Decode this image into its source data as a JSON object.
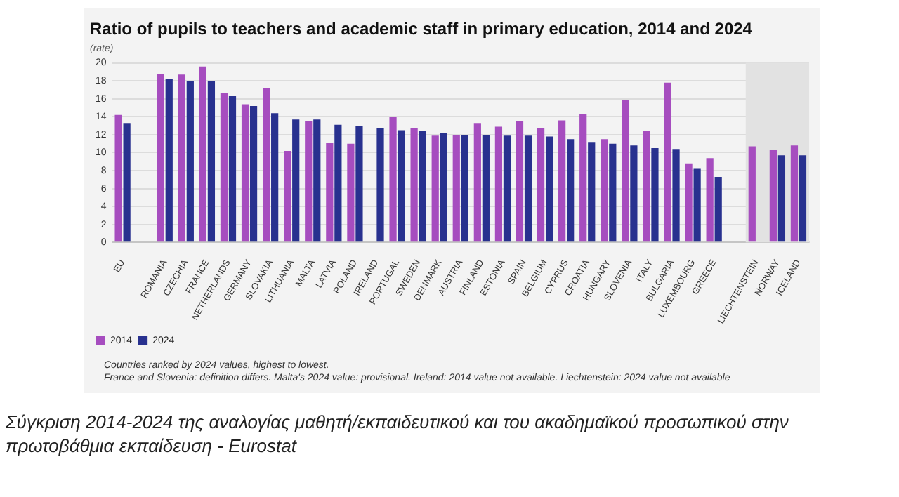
{
  "chart_data": {
    "type": "bar",
    "title": "Ratio of pupils to teachers and academic staff in primary education, 2014 and 2024",
    "subtitle": "(rate)",
    "categories": [
      "EU",
      null,
      "ROMANIA",
      "CZECHIA",
      "FRANCE",
      "NETHERLANDS",
      "GERMANY",
      "SLOVAKIA",
      "LITHUANIA",
      "MALTA",
      "LATVIA",
      "POLAND",
      "IRELAND",
      "PORTUGAL",
      "SWEDEN",
      "DENMARK",
      "AUSTRIA",
      "FINLAND",
      "ESTONIA",
      "SPAIN",
      "BELGIUM",
      "CYPRUS",
      "CROATIA",
      "HUNGARY",
      "SLOVENIA",
      "ITALY",
      "BULGARIA",
      "LUXEMBOURG",
      "GREECE",
      null,
      "LIECHTENSTEIN",
      "NORWAY",
      "ICELAND"
    ],
    "series": [
      {
        "name": "2014",
        "color": "#a64dbf",
        "values": [
          14.2,
          null,
          18.8,
          18.7,
          19.6,
          16.6,
          15.4,
          17.2,
          10.2,
          13.5,
          11.1,
          11.0,
          null,
          14.0,
          12.7,
          11.9,
          12.0,
          13.3,
          12.9,
          13.5,
          12.7,
          13.6,
          14.3,
          11.5,
          15.9,
          12.4,
          17.8,
          8.8,
          9.4,
          null,
          10.7,
          10.3,
          10.8
        ]
      },
      {
        "name": "2024",
        "color": "#28318f",
        "values": [
          13.3,
          null,
          18.2,
          18.0,
          18.0,
          16.3,
          15.2,
          14.4,
          13.7,
          13.7,
          13.1,
          13.0,
          12.7,
          12.5,
          12.4,
          12.2,
          12.0,
          12.0,
          11.9,
          11.9,
          11.8,
          11.5,
          11.2,
          11.0,
          10.8,
          10.5,
          10.4,
          8.2,
          7.3,
          null,
          null,
          9.7,
          9.7
        ]
      }
    ],
    "ylim": [
      0,
      20
    ],
    "yticks": [
      0,
      2,
      4,
      6,
      8,
      10,
      12,
      14,
      16,
      18,
      20
    ],
    "grid": "y",
    "legend": "bottom left",
    "bands": [
      {
        "axis": "x",
        "from": "LIECHTENSTEIN",
        "to": "ICELAND",
        "color": "#e2e2e2"
      }
    ],
    "annotations": [
      "Countries ranked by 2024 values, highest to lowest.",
      "France and Slovenia: definition differs. Malta's 2024 value: provisional. Ireland: 2014 value not available. Liechtenstein: 2024 value not available",
      "Σύγκριση 2014-2024 της αναλογίας μαθητή/εκπαιδευτικού και του ακαδημαϊκού προσωπικού στην πρωτοβάθμια εκπαίδευση - Eurostat"
    ]
  }
}
